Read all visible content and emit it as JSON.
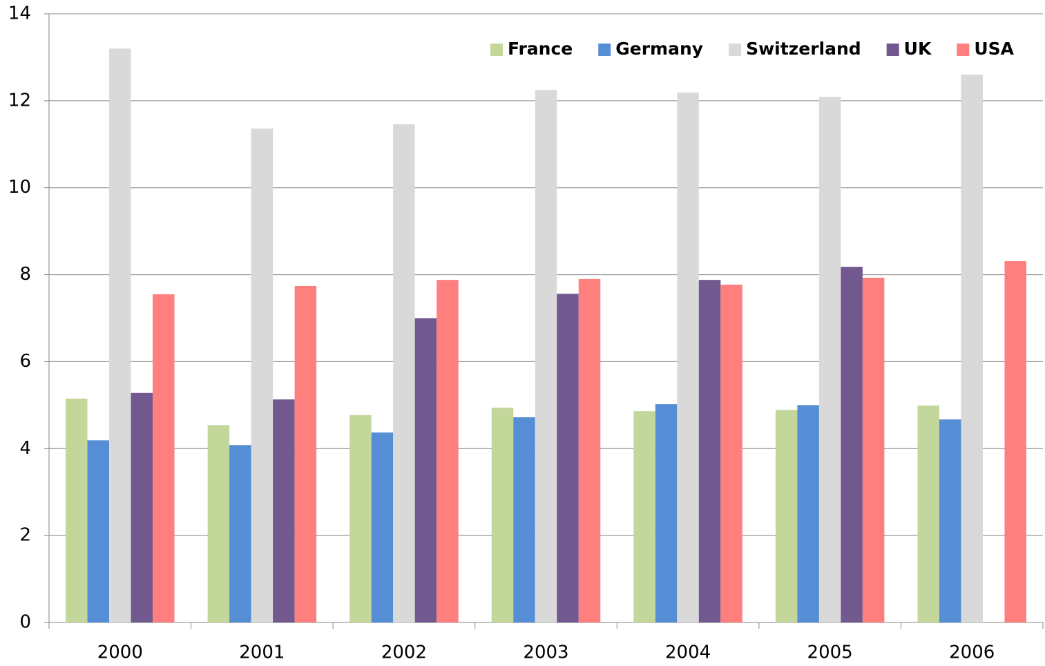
{
  "chart_data": {
    "type": "bar",
    "categories": [
      "2000",
      "2001",
      "2002",
      "2003",
      "2004",
      "2005",
      "2006"
    ],
    "series": [
      {
        "name": "France",
        "color": "#c4d79b",
        "values": [
          5.15,
          4.54,
          4.77,
          4.94,
          4.86,
          4.89,
          4.99
        ]
      },
      {
        "name": "Germany",
        "color": "#558ed5",
        "values": [
          4.19,
          4.08,
          4.37,
          4.72,
          5.02,
          5.0,
          4.67
        ]
      },
      {
        "name": "Switzerland",
        "color": "#d9d9d9",
        "values": [
          13.2,
          11.36,
          11.46,
          12.25,
          12.19,
          12.09,
          12.6
        ]
      },
      {
        "name": "UK",
        "color": "#71588f",
        "values": [
          5.28,
          5.13,
          7.0,
          7.56,
          7.88,
          8.18,
          null
        ]
      },
      {
        "name": "USA",
        "color": "#ff7f7f",
        "values": [
          7.55,
          7.74,
          7.88,
          7.9,
          7.77,
          7.93,
          8.31
        ]
      }
    ],
    "ylim": [
      0,
      14
    ],
    "yticks": [
      0,
      2,
      4,
      6,
      8,
      10,
      12,
      14
    ],
    "grid": true,
    "legend": "top-right"
  }
}
